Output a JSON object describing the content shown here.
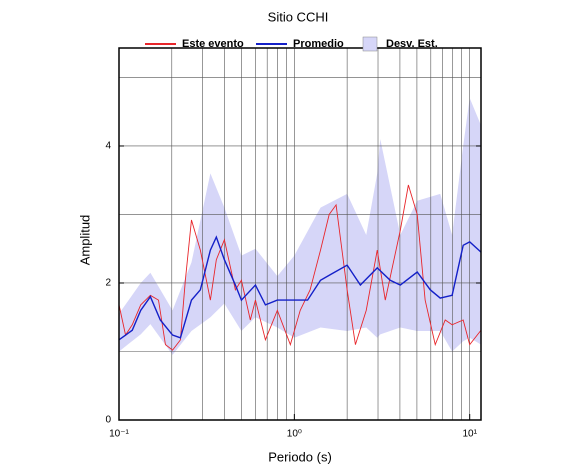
{
  "chart_data": {
    "type": "line",
    "title": "Sitio CCHI",
    "x_label": "Periodo (s)",
    "y_label": "Amplitud",
    "xscale": "log",
    "xlim": [
      0.1,
      11.6
    ],
    "ylim": [
      0,
      5.43
    ],
    "xticks": [
      {
        "value": 0.1,
        "label": "10⁻¹"
      },
      {
        "value": 1,
        "label": "10⁰"
      },
      {
        "value": 10,
        "label": "10¹"
      }
    ],
    "yticks": [
      0,
      2,
      4
    ],
    "x_gridlines": [
      0.2,
      0.3,
      0.4,
      0.5,
      0.6,
      0.7,
      0.8,
      0.9,
      1,
      2,
      3,
      4,
      5,
      6,
      7,
      8,
      9,
      10
    ],
    "y_gridlines": [
      1,
      2,
      3,
      4,
      5
    ],
    "legend": "top",
    "series": [
      {
        "name": "Este evento",
        "kind": "line",
        "color": "#e8262b",
        "x": [
          0.1,
          0.109,
          0.119,
          0.133,
          0.151,
          0.168,
          0.184,
          0.202,
          0.224,
          0.239,
          0.259,
          0.291,
          0.332,
          0.359,
          0.399,
          0.461,
          0.499,
          0.561,
          0.6,
          0.684,
          0.8,
          0.949,
          1.08,
          1.23,
          1.41,
          1.58,
          1.73,
          2.0,
          2.23,
          2.57,
          2.97,
          3.3,
          4.02,
          4.47,
          5.02,
          5.57,
          6.36,
          7.25,
          7.94,
          9.18,
          10,
          11.6
        ],
        "values": [
          1.68,
          1.24,
          1.39,
          1.68,
          1.82,
          1.75,
          1.1,
          1.02,
          1.17,
          2.04,
          2.92,
          2.48,
          1.75,
          2.34,
          2.63,
          1.9,
          2.04,
          1.46,
          1.75,
          1.17,
          1.6,
          1.1,
          1.6,
          1.9,
          2.48,
          3.0,
          3.14,
          1.9,
          1.1,
          1.6,
          2.48,
          1.75,
          2.77,
          3.43,
          3.0,
          1.75,
          1.1,
          1.46,
          1.39,
          1.46,
          1.1,
          1.31
        ]
      },
      {
        "name": "Promedio",
        "kind": "line",
        "color": "#1420c8",
        "x": [
          0.1,
          0.119,
          0.133,
          0.151,
          0.172,
          0.202,
          0.224,
          0.259,
          0.291,
          0.332,
          0.359,
          0.399,
          0.461,
          0.499,
          0.6,
          0.684,
          0.8,
          0.949,
          1.19,
          1.41,
          1.6,
          2.0,
          2.38,
          2.97,
          3.52,
          4.02,
          5.02,
          5.96,
          6.79,
          7.94,
          9.18,
          10,
          11.6
        ],
        "values": [
          1.17,
          1.31,
          1.6,
          1.8,
          1.46,
          1.24,
          1.2,
          1.75,
          1.9,
          2.48,
          2.67,
          2.34,
          1.97,
          1.75,
          1.97,
          1.68,
          1.75,
          1.75,
          1.75,
          2.04,
          2.12,
          2.26,
          1.97,
          2.22,
          2.04,
          1.97,
          2.16,
          1.9,
          1.78,
          1.82,
          2.55,
          2.6,
          2.45
        ]
      },
      {
        "name": "Desv. Est.",
        "kind": "band",
        "color": "#d6d6f8",
        "x": [
          0.1,
          0.133,
          0.151,
          0.202,
          0.259,
          0.332,
          0.399,
          0.499,
          0.6,
          0.8,
          1,
          1.41,
          2.0,
          2.57,
          2.97,
          3.09,
          4.02,
          5.02,
          6.79,
          7.94,
          9.18,
          10,
          11.6
        ],
        "upper": [
          1.55,
          2.0,
          2.15,
          1.6,
          2.3,
          3.6,
          3.1,
          2.4,
          2.5,
          2.1,
          2.4,
          3.1,
          3.3,
          2.7,
          3.6,
          4.1,
          2.7,
          3.2,
          3.3,
          2.7,
          4.0,
          4.7,
          4.3
        ],
        "lower": [
          1.0,
          1.25,
          1.4,
          0.95,
          1.3,
          1.5,
          1.7,
          1.3,
          1.5,
          1.35,
          1.2,
          1.35,
          1.3,
          1.35,
          1.2,
          1.25,
          1.35,
          1.3,
          1.3,
          1.0,
          1.15,
          1.2,
          1.1
        ]
      }
    ]
  }
}
